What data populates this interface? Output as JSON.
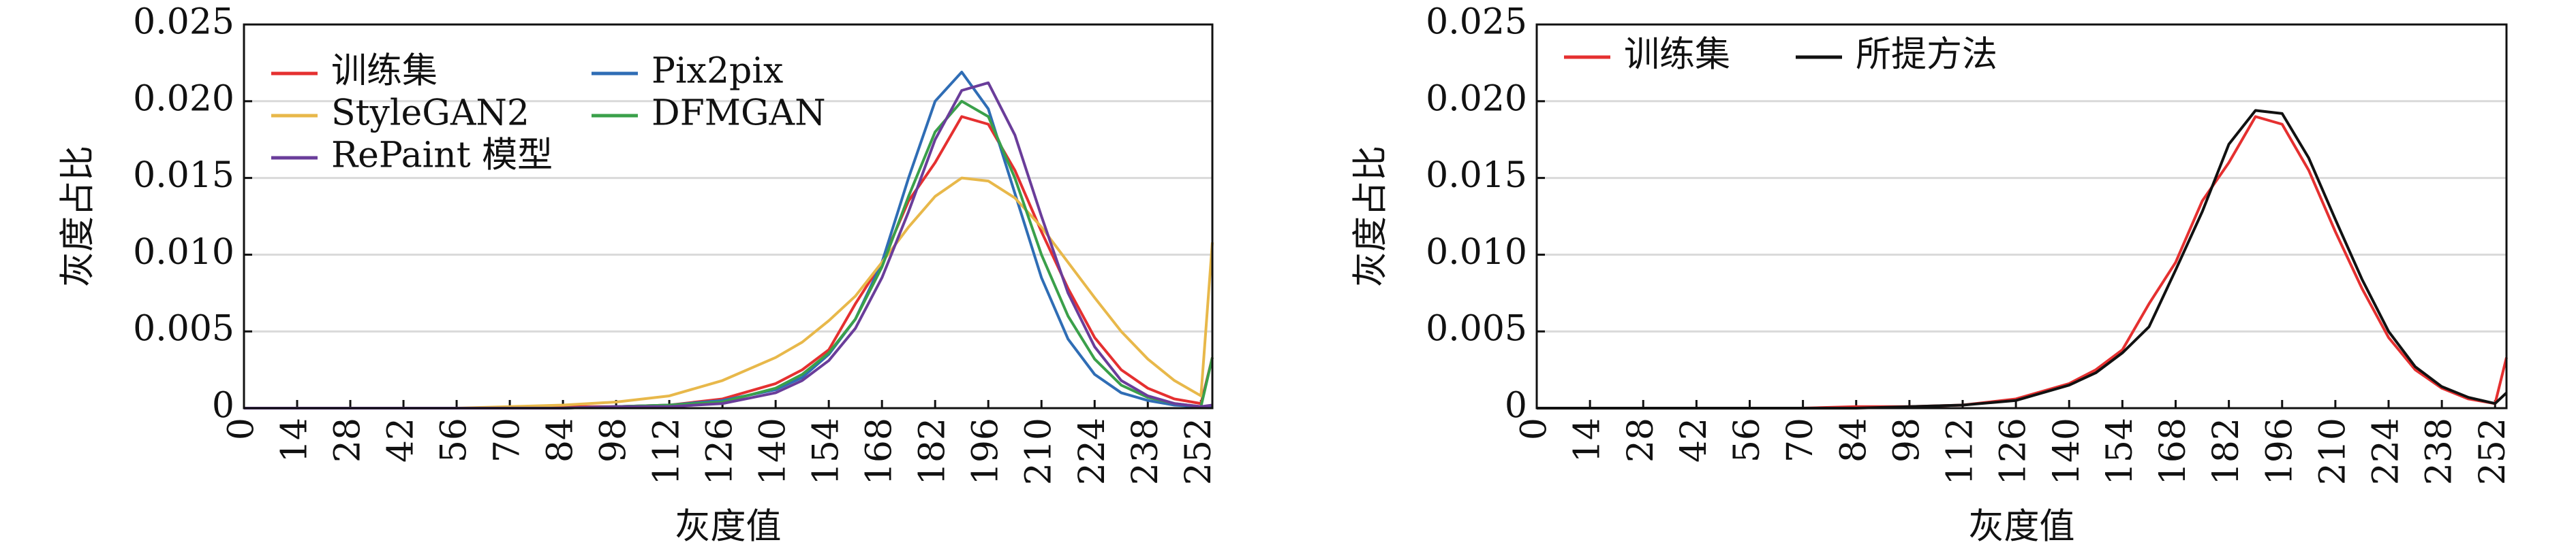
{
  "chart_data": [
    {
      "type": "line",
      "x_label": "灰度值",
      "y_label": "灰度占比",
      "x": [
        0,
        14,
        28,
        42,
        56,
        70,
        84,
        98,
        112,
        126,
        140,
        147,
        154,
        161,
        168,
        175,
        182,
        189,
        196,
        203,
        210,
        217,
        224,
        231,
        238,
        245,
        252,
        255
      ],
      "xlim": [
        0,
        255
      ],
      "xticks": [
        0,
        14,
        28,
        42,
        56,
        70,
        84,
        98,
        112,
        126,
        140,
        154,
        168,
        182,
        196,
        210,
        224,
        238,
        252
      ],
      "ylim": [
        0,
        0.025
      ],
      "yticks": [
        0,
        0.005,
        {
          "value": 0.01,
          "label": "0.010"
        },
        0.015,
        {
          "value": 0.02,
          "label": "0.020"
        },
        0.025
      ],
      "grid": true,
      "legend": "upper left",
      "series": [
        {
          "name": "训练集",
          "color": "#e53030",
          "values": [
            0,
            0,
            0,
            0,
            0,
            0,
            0.0001,
            0.0001,
            0.0002,
            0.0006,
            0.0016,
            0.0025,
            0.0038,
            0.0068,
            0.0095,
            0.0135,
            0.016,
            0.019,
            0.0185,
            0.0155,
            0.0115,
            0.0078,
            0.0046,
            0.0025,
            0.0013,
            0.0006,
            0.0003,
            0.0033
          ]
        },
        {
          "name": "Pix2pix",
          "color": "#2f6db5",
          "values": [
            0,
            0,
            0,
            0,
            0,
            0,
            0,
            0.0001,
            0.0002,
            0.0005,
            0.0012,
            0.002,
            0.0035,
            0.0058,
            0.0095,
            0.015,
            0.02,
            0.0219,
            0.0195,
            0.014,
            0.0085,
            0.0045,
            0.0022,
            0.001,
            0.0005,
            0.0002,
            0.0001,
            0.0001
          ]
        },
        {
          "name": "StyleGAN2",
          "color": "#e8b84a",
          "values": [
            0,
            0,
            0,
            0,
            0,
            0.0001,
            0.0002,
            0.0004,
            0.0008,
            0.0018,
            0.0033,
            0.0043,
            0.0057,
            0.0073,
            0.0095,
            0.0118,
            0.0138,
            0.015,
            0.0148,
            0.0137,
            0.0118,
            0.0095,
            0.0072,
            0.005,
            0.0032,
            0.0018,
            0.0008,
            0.0108
          ]
        },
        {
          "name": "DFMGAN",
          "color": "#3aa04a",
          "values": [
            0,
            0,
            0,
            0,
            0,
            0,
            0,
            0.0001,
            0.0002,
            0.0004,
            0.0013,
            0.0022,
            0.0036,
            0.0058,
            0.0092,
            0.0138,
            0.018,
            0.02,
            0.019,
            0.015,
            0.01,
            0.006,
            0.0032,
            0.0015,
            0.0007,
            0.0003,
            0.0001,
            0.0033
          ]
        },
        {
          "name": "RePaint 模型",
          "color": "#6a3d9a",
          "values": [
            0,
            0,
            0,
            0,
            0,
            0,
            0,
            0.0001,
            0.0001,
            0.0003,
            0.001,
            0.0018,
            0.0031,
            0.0052,
            0.0085,
            0.0128,
            0.0175,
            0.0207,
            0.0212,
            0.0178,
            0.0125,
            0.0075,
            0.004,
            0.0018,
            0.0008,
            0.0003,
            0.0001,
            0.0002
          ]
        }
      ]
    },
    {
      "type": "line",
      "x_label": "灰度值",
      "y_label": "灰度占比",
      "x": [
        0,
        14,
        28,
        42,
        56,
        70,
        84,
        98,
        112,
        126,
        140,
        147,
        154,
        161,
        168,
        175,
        182,
        189,
        196,
        203,
        210,
        217,
        224,
        231,
        238,
        245,
        252,
        255
      ],
      "xlim": [
        0,
        255
      ],
      "xticks": [
        0,
        14,
        28,
        42,
        56,
        70,
        84,
        98,
        112,
        126,
        140,
        154,
        168,
        182,
        196,
        210,
        224,
        238,
        252
      ],
      "ylim": [
        0,
        0.025
      ],
      "yticks": [
        0,
        0.005,
        {
          "value": 0.01,
          "label": "0.010"
        },
        0.015,
        {
          "value": 0.02,
          "label": "0.020"
        },
        0.025
      ],
      "grid": true,
      "legend": "upper left",
      "series": [
        {
          "name": "训练集",
          "color": "#e53030",
          "values": [
            0,
            0,
            0,
            0,
            0,
            0,
            0.0001,
            0.0001,
            0.0002,
            0.0006,
            0.0016,
            0.0025,
            0.0038,
            0.0068,
            0.0095,
            0.0135,
            0.016,
            0.019,
            0.0185,
            0.0155,
            0.0115,
            0.0078,
            0.0046,
            0.0025,
            0.0013,
            0.0006,
            0.0003,
            0.0033
          ]
        },
        {
          "name": "所提方法",
          "color": "#111111",
          "values": [
            0,
            0,
            0,
            0,
            0,
            0,
            0,
            0.0001,
            0.0002,
            0.0005,
            0.0015,
            0.0023,
            0.0036,
            0.0053,
            0.009,
            0.0128,
            0.0172,
            0.0194,
            0.0192,
            0.0163,
            0.0123,
            0.0084,
            0.005,
            0.0027,
            0.0014,
            0.0007,
            0.0003,
            0.001
          ]
        }
      ]
    }
  ]
}
